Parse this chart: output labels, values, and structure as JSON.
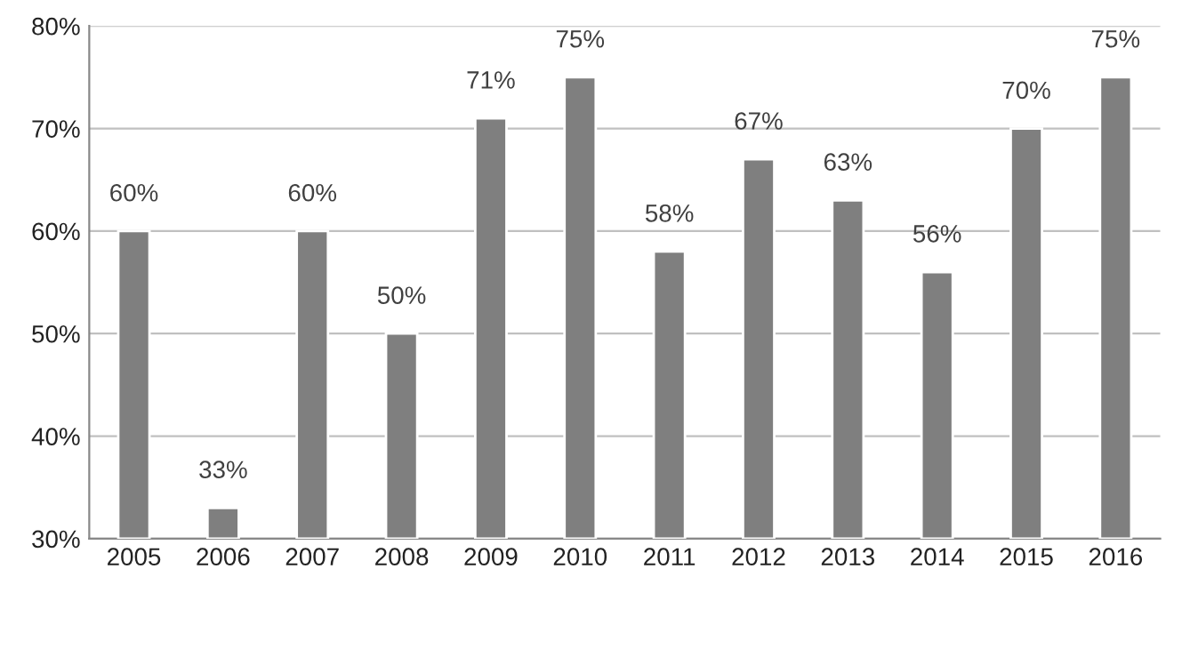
{
  "chart_data": {
    "type": "bar",
    "categories": [
      "2005",
      "2006",
      "2007",
      "2008",
      "2009",
      "2010",
      "2011",
      "2012",
      "2013",
      "2014",
      "2015",
      "2016"
    ],
    "series": [
      {
        "color": "#7f7f7f",
        "values": [
          60,
          33,
          60,
          50,
          71,
          75,
          58,
          67,
          63,
          56,
          70,
          75
        ],
        "value_labels": [
          "60%",
          "33%",
          "60%",
          "50%",
          "71%",
          "75%",
          "58%",
          "67%",
          "63%",
          "56%",
          "70%",
          "75%"
        ]
      }
    ],
    "ylim": [
      30,
      80
    ],
    "yticks": [
      {
        "value": 30,
        "label": "30%"
      },
      {
        "value": 40,
        "label": "40%"
      },
      {
        "value": 50,
        "label": "50%"
      },
      {
        "value": 60,
        "label": "60%"
      },
      {
        "value": 70,
        "label": "70%"
      },
      {
        "value": 80,
        "label": "80%"
      }
    ],
    "grid": "y"
  }
}
